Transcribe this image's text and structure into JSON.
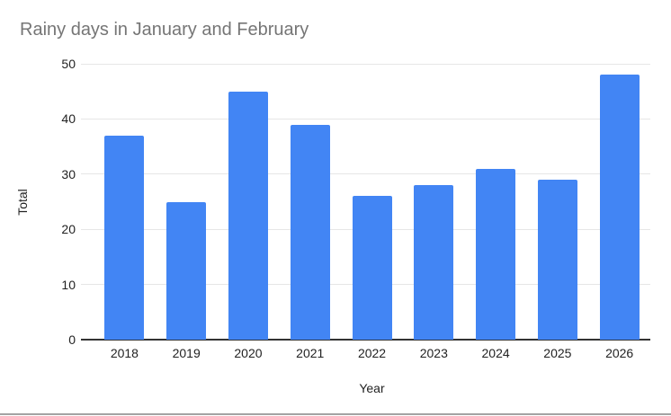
{
  "chart_data": {
    "type": "bar",
    "title": "Rainy days in January and February",
    "xlabel": "Year",
    "ylabel": "Total",
    "categories": [
      "2018",
      "2019",
      "2020",
      "2021",
      "2022",
      "2023",
      "2024",
      "2025",
      "2026"
    ],
    "values": [
      37,
      25,
      45,
      39,
      26,
      28,
      31,
      29,
      48
    ],
    "ylim": [
      0,
      50
    ],
    "yticks": [
      0,
      10,
      20,
      30,
      40,
      50
    ],
    "grid": true,
    "legend": "none",
    "bar_color": "#4285F4"
  },
  "colors": {
    "bar": "#4285F4",
    "title_text": "#757575",
    "tick_text": "#222222",
    "gridline": "#e6e6e6",
    "axis_line": "#333333",
    "window_edge": "#a3a3a3",
    "background": "#ffffff"
  }
}
